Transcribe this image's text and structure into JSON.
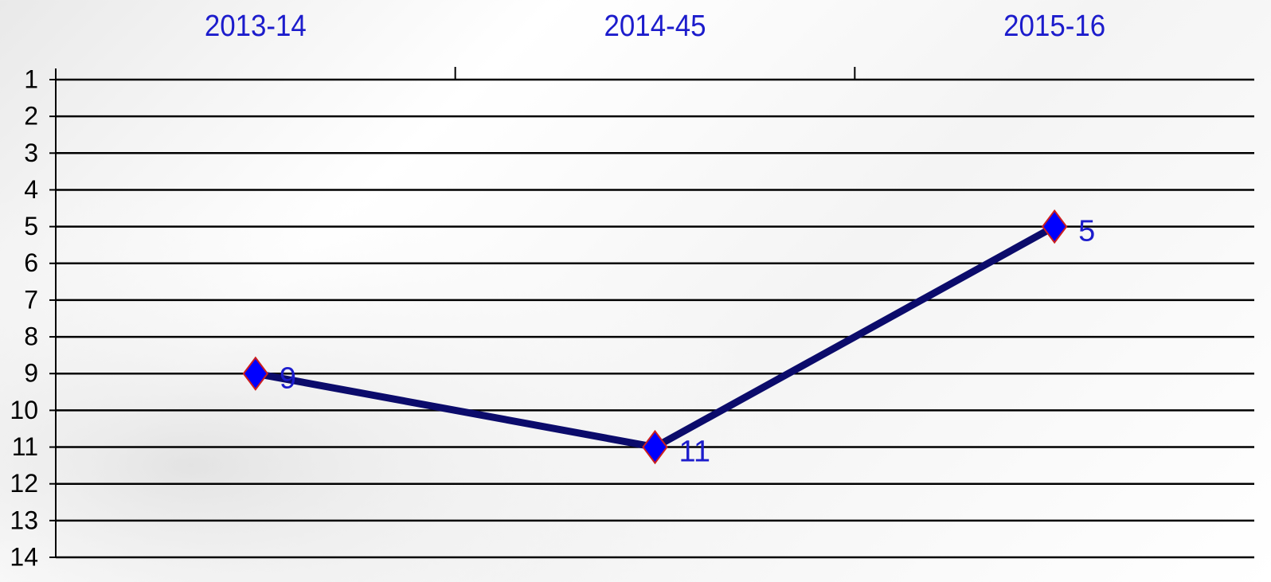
{
  "chart_data": {
    "type": "line",
    "categories": [
      "2013-14",
      "2014-45",
      "2015-16"
    ],
    "series": [
      {
        "color": "#0b0b6b",
        "marker_color": "#0000ff",
        "marker_edge": "#cc1f1f",
        "values": [
          9,
          11,
          5
        ]
      }
    ],
    "ylim": [
      1,
      14
    ],
    "y_reversed": true,
    "yticks": [
      1,
      2,
      3,
      4,
      5,
      6,
      7,
      8,
      9,
      10,
      11,
      12,
      13,
      14
    ],
    "grid": true,
    "x_axis_position": "top",
    "label_color": "#1c1ccc"
  }
}
